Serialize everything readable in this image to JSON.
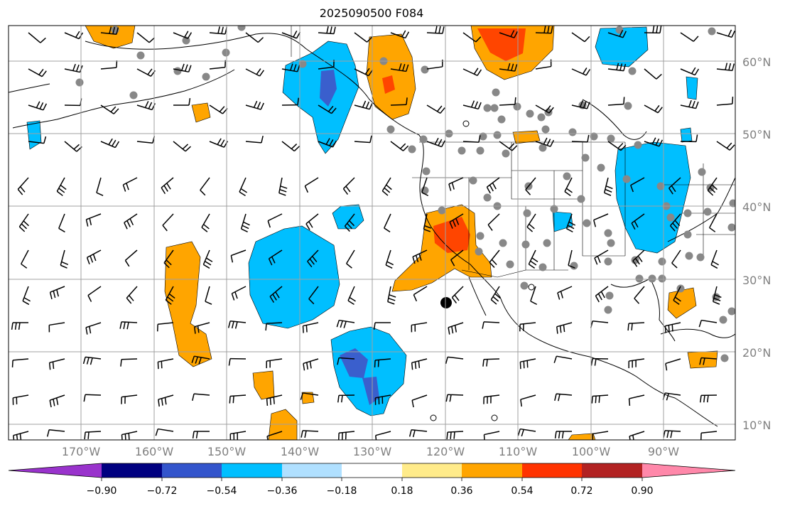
{
  "title": "2025090500 F084",
  "lat_labels": [
    "60°N",
    "50°N",
    "40°N",
    "30°N",
    "20°N",
    "10°N"
  ],
  "lon_labels": [
    "170°W",
    "160°W",
    "150°W",
    "140°W",
    "130°W",
    "120°W",
    "110°W",
    "100°W",
    "90°W"
  ],
  "colorbar": {
    "tick_labels": [
      "−0.90",
      "−0.72",
      "−0.54",
      "−0.36",
      "−0.18",
      "0.18",
      "0.36",
      "0.54",
      "0.72",
      "0.90"
    ],
    "colors": [
      "#9933cc",
      "#000080",
      "#3355cc",
      "#00bfff",
      "#b0e0ff",
      "#ffffff",
      "#ffeb8a",
      "#ffa500",
      "#ff3300",
      "#b22222",
      "#ff88aa"
    ]
  },
  "fields": {
    "orange": "#ffa500",
    "red": "#ff4500",
    "blue": "#00bfff",
    "dark_blue": "#3a5fcd",
    "station_gray": "#888888"
  }
}
